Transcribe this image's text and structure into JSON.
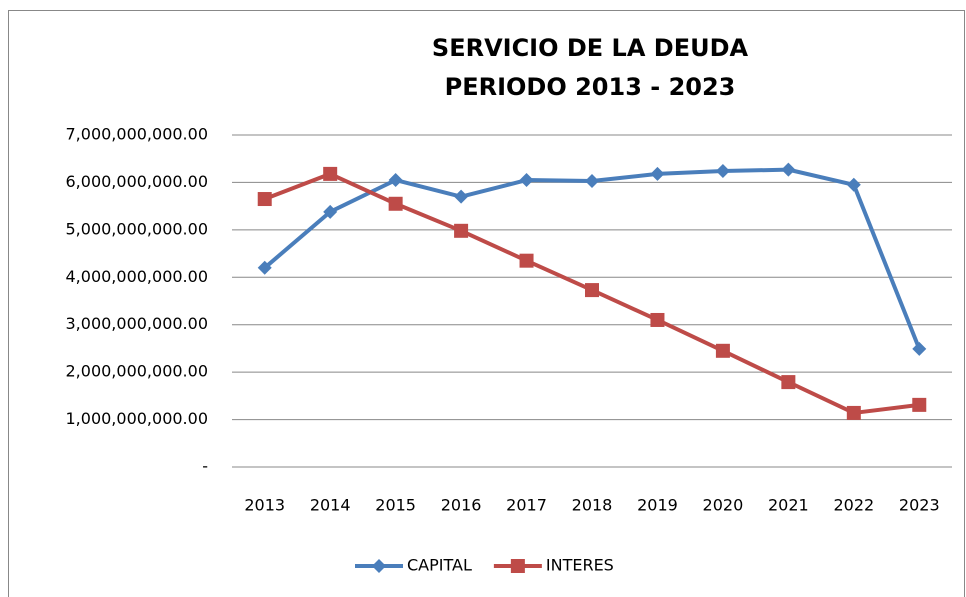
{
  "chart_data": {
    "type": "line",
    "title": [
      "SERVICIO DE LA DEUDA",
      "PERIODO 2013 - 2023"
    ],
    "categories": [
      "2013",
      "2014",
      "2015",
      "2016",
      "2017",
      "2018",
      "2019",
      "2020",
      "2021",
      "2022",
      "2023"
    ],
    "series": [
      {
        "name": "CAPITAL",
        "color": "#4a7ebb",
        "marker": "diamond",
        "values": [
          4200000000,
          5380000000,
          6050000000,
          5700000000,
          6050000000,
          6030000000,
          6180000000,
          6240000000,
          6270000000,
          5950000000,
          2490000000
        ]
      },
      {
        "name": "INTERES",
        "color": "#be4b48",
        "marker": "square",
        "values": [
          5650000000,
          6180000000,
          5550000000,
          4980000000,
          4350000000,
          3730000000,
          3100000000,
          2450000000,
          1790000000,
          1140000000,
          1310000000
        ]
      }
    ],
    "ylim": [
      0,
      7000000000
    ],
    "yticks": [
      {
        "value": 0,
        "label": "-"
      },
      {
        "value": 1000000000,
        "label": "1,000,000,000.00"
      },
      {
        "value": 2000000000,
        "label": "2,000,000,000.00"
      },
      {
        "value": 3000000000,
        "label": "3,000,000,000.00"
      },
      {
        "value": 4000000000,
        "label": "4,000,000,000.00"
      },
      {
        "value": 5000000000,
        "label": "5,000,000,000.00"
      },
      {
        "value": 6000000000,
        "label": "6,000,000,000.00"
      },
      {
        "value": 7000000000,
        "label": "7,000,000,000.00"
      }
    ],
    "grid": true,
    "legend": "bottom"
  }
}
